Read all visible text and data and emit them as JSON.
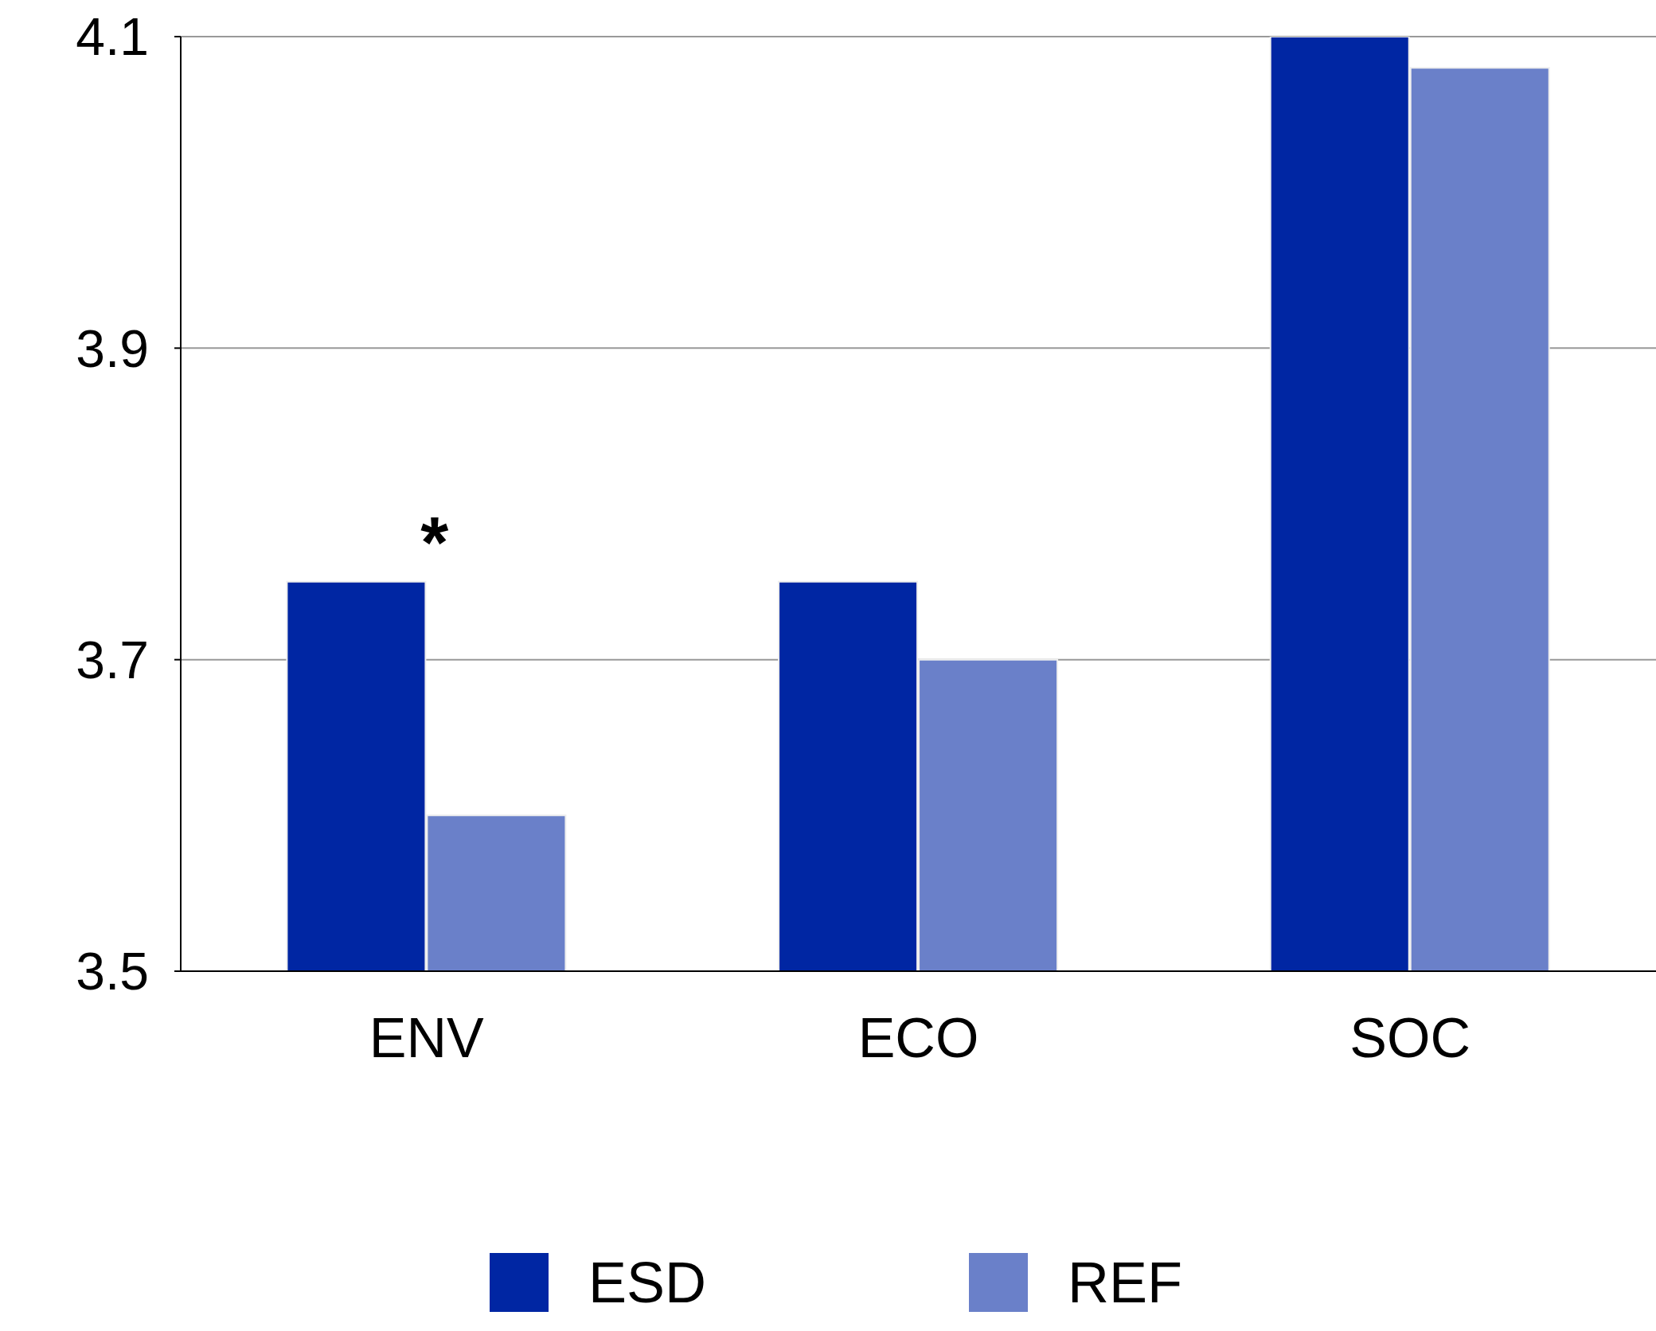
{
  "chart_data": {
    "type": "bar",
    "categories": [
      "ENV",
      "ECO",
      "SOC"
    ],
    "series": [
      {
        "name": "ESD",
        "color": "#0026a3",
        "values": [
          3.75,
          3.75,
          4.1
        ]
      },
      {
        "name": "REF",
        "color": "#6a80c9",
        "values": [
          3.6,
          3.7,
          4.08
        ]
      }
    ],
    "ylim": [
      3.5,
      4.1
    ],
    "yticks": [
      3.5,
      3.7,
      3.9,
      4.1
    ],
    "grid": "y",
    "legend": "bottom",
    "annotations": [
      {
        "text": "*",
        "x": "ENV",
        "y": 3.75
      }
    ]
  }
}
